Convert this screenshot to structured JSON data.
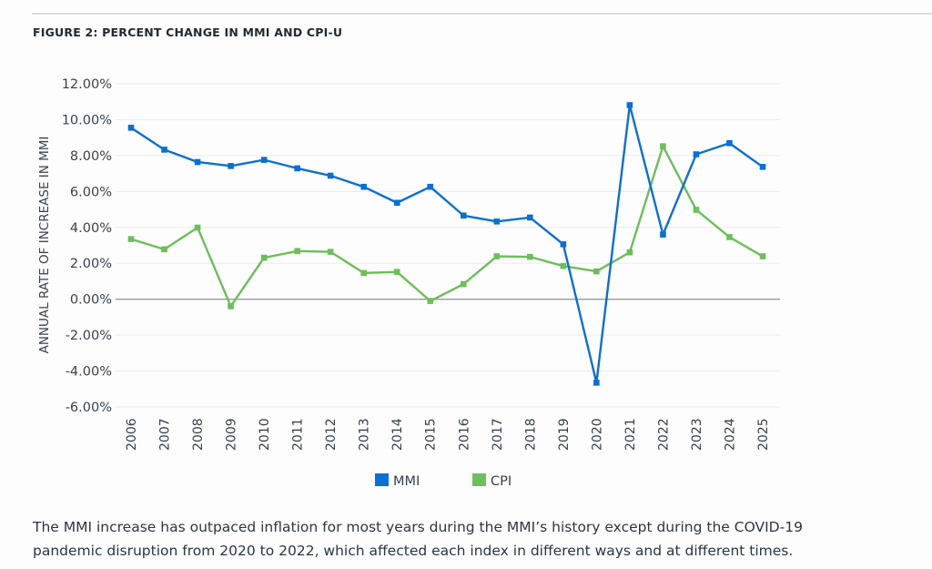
{
  "figure": {
    "title": "FIGURE 2: PERCENT CHANGE IN MMI AND CPI-U"
  },
  "caption": {
    "line1": "The MMI increase has outpaced inflation for most years during the MMI’s history except during the COVID-19",
    "line2": "pandemic disruption from 2020 to 2022, which affected each index in different ways and at different times."
  },
  "chart_data": {
    "type": "line",
    "title": "FIGURE 2: PERCENT CHANGE IN MMI AND CPI-U",
    "xlabel": "",
    "ylabel": "ANNUAL RATE OF INCREASE IN MMI",
    "ylim": [
      -6,
      12
    ],
    "yticks": [
      12,
      10,
      8,
      6,
      4,
      2,
      0,
      -2,
      -4,
      -6
    ],
    "ytick_labels": [
      "12.00%",
      "10.00%",
      "8.00%",
      "6.00%",
      "4.00%",
      "2.00%",
      "0.00%",
      "-2.00%",
      "-4.00%",
      "-6.00%"
    ],
    "grid": true,
    "legend": "bottom-center",
    "x": [
      "2006",
      "2007",
      "2008",
      "2009",
      "2010",
      "2011",
      "2012",
      "2013",
      "2014",
      "2015",
      "2016",
      "2017",
      "2018",
      "2019",
      "2020",
      "2021",
      "2022",
      "2023",
      "2024",
      "2025"
    ],
    "series": [
      {
        "name": "MMI",
        "color": "#0b6fd4",
        "values": [
          9.55,
          8.33,
          7.64,
          7.42,
          7.76,
          7.29,
          6.88,
          6.26,
          5.37,
          6.26,
          4.66,
          4.33,
          4.55,
          3.06,
          -4.65,
          10.81,
          3.6,
          8.07,
          8.69,
          7.37
        ]
      },
      {
        "name": "CPI",
        "color": "#6cbf5a",
        "values": [
          3.35,
          2.78,
          3.99,
          -0.39,
          2.31,
          2.68,
          2.64,
          1.46,
          1.52,
          -0.1,
          0.84,
          2.39,
          2.36,
          1.85,
          1.55,
          2.61,
          8.52,
          4.98,
          3.46,
          2.39
        ]
      }
    ]
  }
}
